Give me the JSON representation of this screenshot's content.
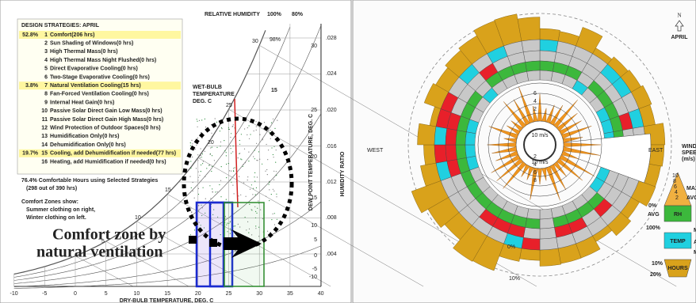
{
  "psychro": {
    "rh_title": "RELATIVE HUMIDITY",
    "rh_labels": [
      "100%",
      "80%"
    ],
    "legend": {
      "heading": "DESIGN STRATEGIES: APRIL",
      "items": [
        {
          "pct": "52.8%",
          "num": "1",
          "text": "Comfort(206 hrs)",
          "color": "#1a1a8c"
        },
        {
          "num": "2",
          "text": "Sun Shading of Windows(0 hrs)",
          "color": "#8a2aa0"
        },
        {
          "num": "3",
          "text": "High Thermal Mass(0 hrs)",
          "color": "#e08a1a"
        },
        {
          "num": "4",
          "text": "High Thermal Mass Night Flushed(0 hrs)",
          "color": "#e08a1a"
        },
        {
          "num": "5",
          "text": "Direct Evaporative Cooling(0 hrs)",
          "color": "#1a1a8c"
        },
        {
          "num": "6",
          "text": "Two-Stage Evaporative Cooling(0 hrs)",
          "color": "#202040"
        },
        {
          "pct": "3.8%",
          "num": "7",
          "text": "Natural Ventilation Cooling(15 hrs)",
          "color": "#1a8a2a"
        },
        {
          "num": "8",
          "text": "Fan-Forced Ventilation Cooling(0 hrs)",
          "color": "#1a9a3a"
        },
        {
          "num": "9",
          "text": "Internal Heat Gain(0 hrs)",
          "color": "#c0601a"
        },
        {
          "num": "10",
          "text": "Passive Solar Direct Gain Low Mass(0 hrs)",
          "color": "#b0209a"
        },
        {
          "num": "11",
          "text": "Passive Solar Direct Gain High Mass(0 hrs)",
          "color": "#b0209a"
        },
        {
          "num": "12",
          "text": "Wind Protection of Outdoor Spaces(0 hrs)",
          "color": "#303050"
        },
        {
          "num": "13",
          "text": "Humidification Only(0 hrs)",
          "color": "#1aa0b0"
        },
        {
          "num": "14",
          "text": "Dehumidification Only(0 hrs)",
          "color": "#1aa0b0"
        },
        {
          "pct": "19.7%",
          "num": "15",
          "text": "Cooling, add Dehumidification if needed(77 hrs)",
          "color": "#c04a10"
        },
        {
          "num": "16",
          "text": "Heating, add Humidification if needed(0 hrs)",
          "color": "#d01a1a"
        }
      ]
    },
    "summary": [
      "76.4% Comfortable Hours using Selected Strategies",
      "(298 out of 390 hrs)"
    ],
    "zones": [
      "Comfort Zones show:",
      "Summer clothing on right,",
      "Winter clothing on left."
    ],
    "x_label": "DRY-BULB TEMPERATURE, DEG. C",
    "x_ticks": [
      -10,
      -5,
      0,
      5,
      10,
      15,
      20,
      25,
      30,
      35,
      40
    ],
    "hr_label": "HUMIDITY RATIO",
    "hr_ticks": [
      ".028",
      ".024",
      ".020",
      ".016",
      ".012",
      ".008",
      ".004"
    ],
    "dp_label": "DEW POINT TEMPERATURE, DEG. C",
    "dp_ticks": [
      30,
      25,
      20,
      15,
      10,
      5,
      0,
      -5,
      -10
    ],
    "wb_label": [
      "WET-BULB",
      "TEMPERATURE",
      "DEG. C"
    ],
    "wb_ticks": [
      30,
      25,
      20,
      15,
      10,
      5
    ],
    "rh_curve_labels": [
      "98%"
    ],
    "marker": "15",
    "annotation": [
      "Comfort zone by",
      "natural ventilation"
    ]
  },
  "wind": {
    "west": "WEST",
    "east": "EAST",
    "north": "N",
    "month": "APRIL",
    "speed_labels": [
      "10 m/s",
      "10 m/s"
    ],
    "ring_ticks": [
      6,
      4,
      2,
      2,
      4,
      6,
      8
    ],
    "pct_labels": [
      "0%",
      "10%"
    ],
    "legend": {
      "title": [
        "WIND",
        "SPEED",
        "(m/s)"
      ],
      "max": "MAX",
      "avg": "AVG",
      "min": "MIN",
      "rh": "RH",
      "temp": "TEMP",
      "hours": "HOURS",
      "rh_low": "0%",
      "rh_avg": "AVG",
      "rh_high": "100%",
      "tmin": "MIN",
      "tavg": "AVG",
      "tmax": "MAX",
      "h10": "10%",
      "h20": "20%",
      "scale": [
        10,
        8,
        6,
        4,
        2
      ]
    }
  }
}
